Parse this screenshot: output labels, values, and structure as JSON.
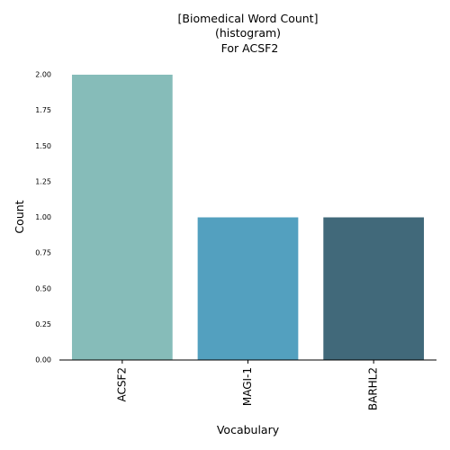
{
  "chart_data": {
    "type": "bar",
    "title_lines": [
      "[Biomedical Word Count]",
      "(histogram)",
      " For ACSF2"
    ],
    "xlabel": "Vocabulary",
    "ylabel": "Count",
    "categories": [
      "ACSF2",
      "MAGI-1",
      "BARHL2"
    ],
    "values": [
      2,
      1,
      1
    ],
    "colors": [
      "#86bcb9",
      "#53a0bf",
      "#41697a"
    ],
    "ylim": [
      0,
      2.0
    ],
    "yticks": [
      "0.00",
      "0.25",
      "0.50",
      "0.75",
      "1.00",
      "1.25",
      "1.50",
      "1.75",
      "2.00"
    ],
    "grid": false,
    "legend": "none"
  }
}
